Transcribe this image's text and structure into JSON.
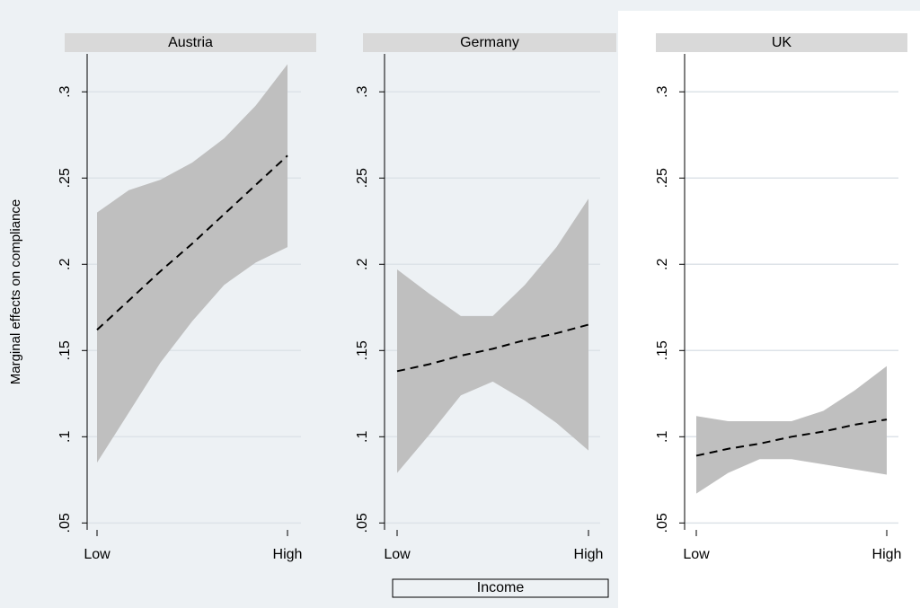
{
  "axis_title_y": "Marginal effects on compliance",
  "axis_title_x": "Income",
  "chart_data": [
    {
      "type": "line",
      "title": "Austria",
      "x": [
        0,
        0.167,
        0.333,
        0.5,
        0.667,
        0.833,
        1
      ],
      "values": [
        0.162,
        0.179,
        0.196,
        0.212,
        0.229,
        0.246,
        0.263
      ],
      "ci_upper": [
        0.23,
        0.243,
        0.249,
        0.259,
        0.273,
        0.292,
        0.316
      ],
      "ci_lower": [
        0.085,
        0.114,
        0.143,
        0.167,
        0.188,
        0.201,
        0.21
      ],
      "xlim": [
        0,
        1
      ],
      "xticks": [
        {
          "value": 0,
          "label": "Low"
        },
        {
          "value": 1,
          "label": "High"
        }
      ],
      "ylim": [
        0.046,
        0.322
      ],
      "yticks": [
        {
          "value": 0.05,
          "label": ".05"
        },
        {
          "value": 0.1,
          "label": ".1"
        },
        {
          "value": 0.15,
          "label": ".15"
        },
        {
          "value": 0.2,
          "label": ".2"
        },
        {
          "value": 0.25,
          "label": ".25"
        },
        {
          "value": 0.3,
          "label": ".3"
        }
      ],
      "grid": true,
      "color": "#000000",
      "band_color": "#bfbfbf"
    },
    {
      "type": "line",
      "title": "Germany",
      "x": [
        0,
        0.167,
        0.333,
        0.5,
        0.667,
        0.833,
        1
      ],
      "values": [
        0.138,
        0.142,
        0.147,
        0.151,
        0.156,
        0.16,
        0.165
      ],
      "ci_upper": [
        0.197,
        0.183,
        0.17,
        0.17,
        0.188,
        0.21,
        0.238
      ],
      "ci_lower": [
        0.079,
        0.101,
        0.124,
        0.132,
        0.121,
        0.108,
        0.092
      ],
      "xlim": [
        0,
        1
      ],
      "xticks": [
        {
          "value": 0,
          "label": "Low"
        },
        {
          "value": 1,
          "label": "High"
        }
      ],
      "ylim": [
        0.046,
        0.322
      ],
      "yticks": [
        {
          "value": 0.05,
          "label": ".05"
        },
        {
          "value": 0.1,
          "label": ".1"
        },
        {
          "value": 0.15,
          "label": ".15"
        },
        {
          "value": 0.2,
          "label": ".2"
        },
        {
          "value": 0.25,
          "label": ".25"
        },
        {
          "value": 0.3,
          "label": ".3"
        }
      ],
      "grid": true,
      "color": "#000000",
      "band_color": "#bfbfbf"
    },
    {
      "type": "line",
      "title": "UK",
      "x": [
        0,
        0.167,
        0.333,
        0.5,
        0.667,
        0.833,
        1
      ],
      "values": [
        0.089,
        0.093,
        0.096,
        0.1,
        0.103,
        0.107,
        0.11
      ],
      "ci_upper": [
        0.112,
        0.109,
        0.109,
        0.109,
        0.115,
        0.127,
        0.141
      ],
      "ci_lower": [
        0.067,
        0.079,
        0.087,
        0.087,
        0.084,
        0.081,
        0.078
      ],
      "xlim": [
        0,
        1
      ],
      "xticks": [
        {
          "value": 0,
          "label": "Low"
        },
        {
          "value": 1,
          "label": "High"
        }
      ],
      "ylim": [
        0.046,
        0.322
      ],
      "yticks": [
        {
          "value": 0.05,
          "label": ".05"
        },
        {
          "value": 0.1,
          "label": ".1"
        },
        {
          "value": 0.15,
          "label": ".15"
        },
        {
          "value": 0.2,
          "label": ".2"
        },
        {
          "value": 0.25,
          "label": ".25"
        },
        {
          "value": 0.3,
          "label": ".3"
        }
      ],
      "grid": true,
      "color": "#000000",
      "band_color": "#bfbfbf"
    }
  ]
}
